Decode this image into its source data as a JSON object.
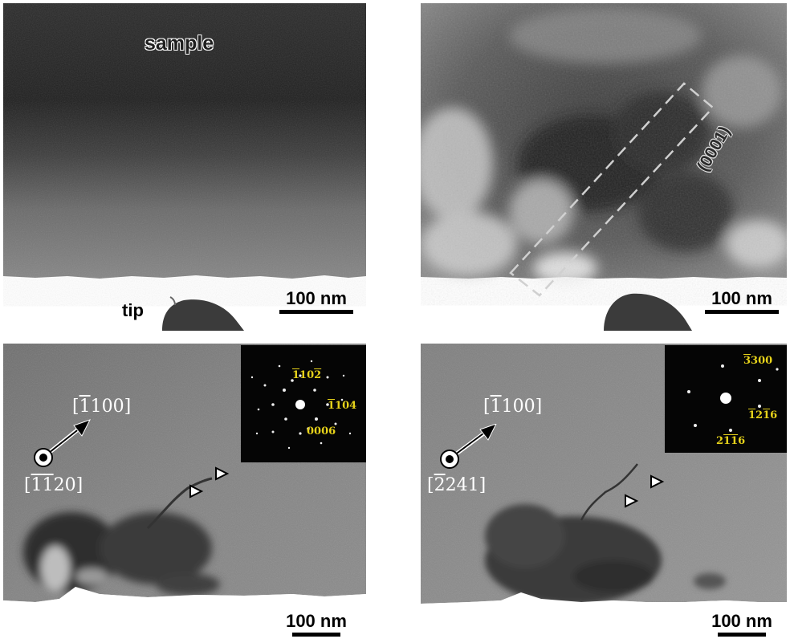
{
  "panels": {
    "top_left": {
      "sample_label": "sample",
      "tip_label": "tip",
      "scale_bar": "100 nm"
    },
    "top_right": {
      "plane_label": "(0001)",
      "scale_bar": "100 nm"
    },
    "bottom_left": {
      "direction_in_plane": [
        "[",
        "1",
        "100]"
      ],
      "direction_out_of_plane": [
        "[",
        "1",
        "1",
        "20]"
      ],
      "saed_spots": {
        "s1": [
          "1",
          "10",
          "2"
        ],
        "s2": [
          "1",
          "104"
        ],
        "s3": "0006"
      },
      "scale_bar": "100 nm"
    },
    "bottom_right": {
      "direction_in_plane": [
        "[",
        "1",
        "100]"
      ],
      "direction_out_of_plane": [
        "[",
        "2",
        "241]"
      ],
      "saed_spots": {
        "s1": [
          "3",
          "300"
        ],
        "s2": [
          "1",
          "2",
          "1",
          "6"
        ],
        "s3": [
          "2",
          "1",
          "1",
          "6"
        ]
      },
      "scale_bar": "100 nm"
    }
  }
}
